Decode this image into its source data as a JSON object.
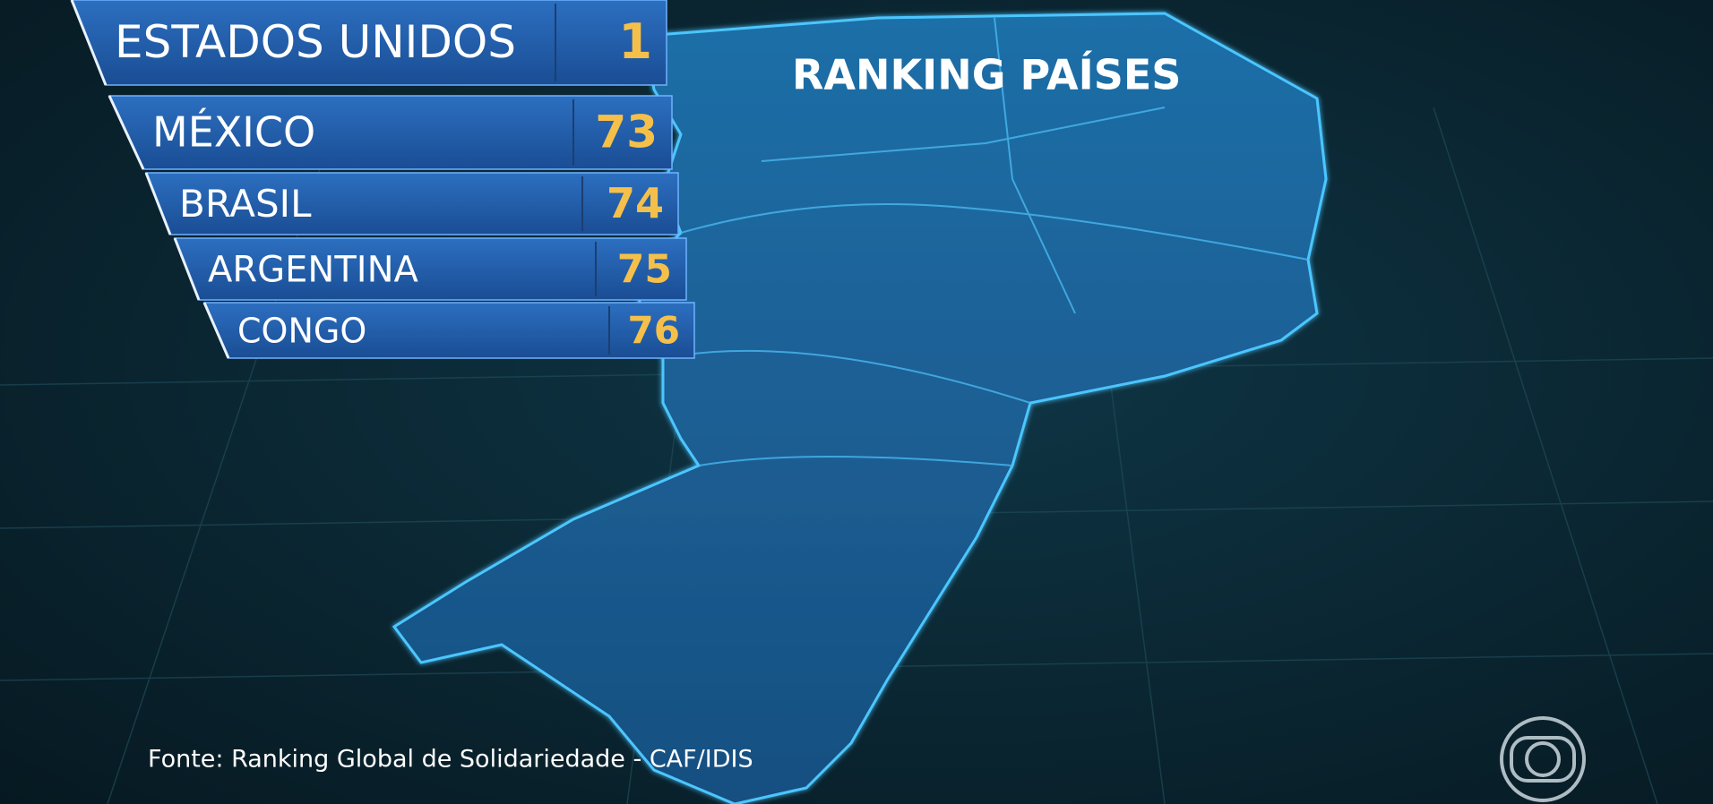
{
  "title": "RANKING PAÍSES",
  "ranking": [
    {
      "country": "ESTADOS UNIDOS",
      "rank": 1
    },
    {
      "country": "MÉXICO",
      "rank": 73
    },
    {
      "country": "BRASIL",
      "rank": 74
    },
    {
      "country": "ARGENTINA",
      "rank": 75
    },
    {
      "country": "CONGO",
      "rank": 76
    }
  ],
  "source": "Fonte: Ranking Global de Solidariedade - CAF/IDIS"
}
